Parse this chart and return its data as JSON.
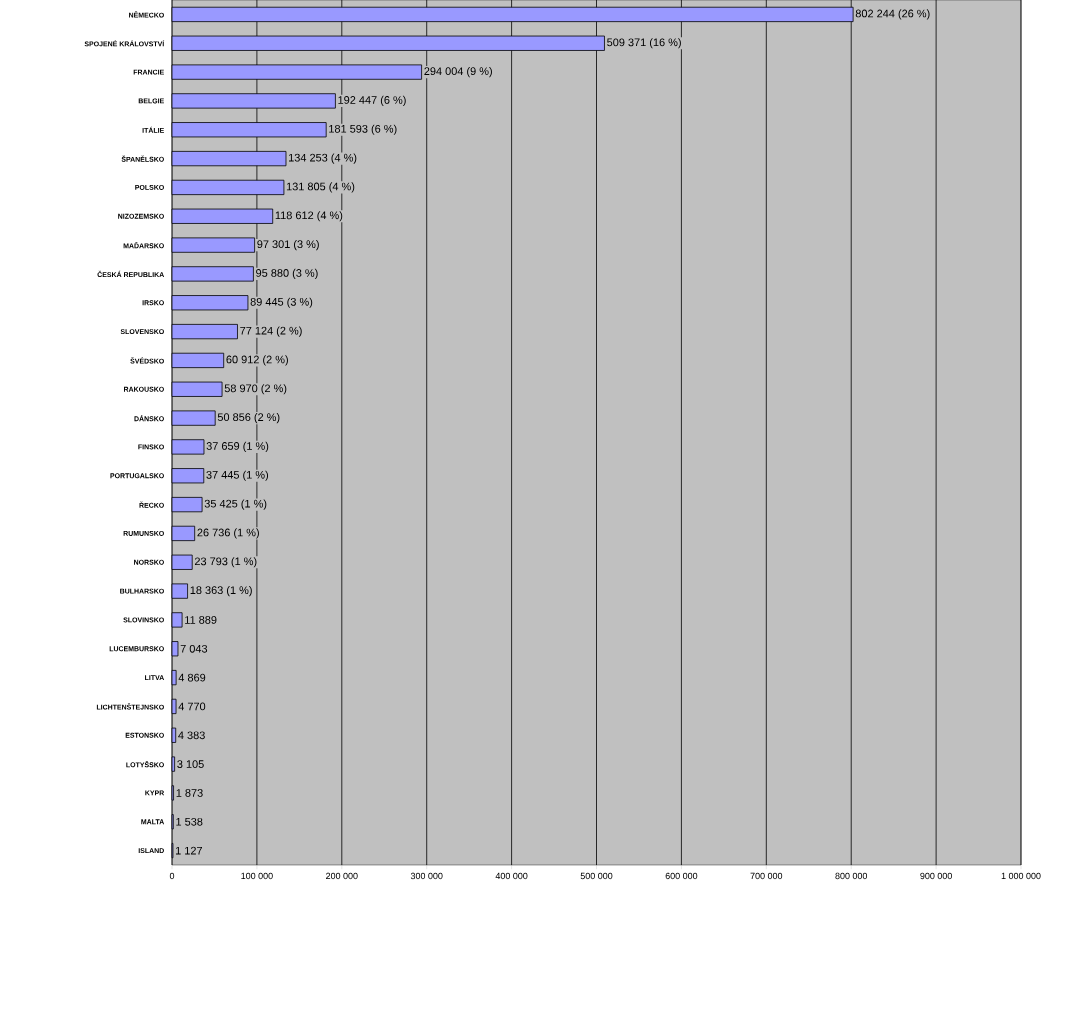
{
  "chart_data": {
    "type": "bar",
    "orientation": "horizontal",
    "color": "#9999ff",
    "grid": "x",
    "categories": [
      "NĚMECKO",
      "SPOJENÉ KRÁLOVSTVÍ",
      "FRANCIE",
      "BELGIE",
      "ITÁLIE",
      "ŠPANĚLSKO",
      "POLSKO",
      "NIZOZEMSKO",
      "MAĎARSKO",
      "ČESKÁ REPUBLIKA",
      "IRSKO",
      "SLOVENSKO",
      "ŠVÉDSKO",
      "RAKOUSKO",
      "DÁNSKO",
      "FINSKO",
      "PORTUGALSKO",
      "ŘECKO",
      "RUMUNSKO",
      "NORSKO",
      "BULHARSKO",
      "SLOVINSKO",
      "LUCEMBURSKO",
      "LITVA",
      "LICHTENŠTEJNSKO",
      "ESTONSKO",
      "LOTYŠSKO",
      "KYPR",
      "MALTA",
      "ISLAND"
    ],
    "values": [
      802244,
      509371,
      294004,
      192447,
      181593,
      134253,
      131805,
      118612,
      97301,
      95880,
      89445,
      77124,
      60912,
      58970,
      50856,
      37659,
      37445,
      35425,
      26736,
      23793,
      18363,
      11889,
      7043,
      4869,
      4770,
      4383,
      3105,
      1873,
      1538,
      1127
    ],
    "value_labels": [
      "802 244 (26 %)",
      "509 371 (16 %)",
      "294 004 (9 %)",
      "192 447 (6 %)",
      "181 593 (6 %)",
      "134 253 (4 %)",
      "131 805 (4 %)",
      "118 612 (4 %)",
      "97 301 (3 %)",
      "95 880 (3 %)",
      "89 445 (3 %)",
      "77 124 (2 %)",
      "60 912 (2 %)",
      "58 970 (2 %)",
      "50 856 (2 %)",
      "37 659 (1 %)",
      "37 445 (1 %)",
      "35 425 (1 %)",
      "26 736 (1 %)",
      "23 793 (1 %)",
      "18 363 (1 %)",
      "11 889",
      "7 043",
      "4 869",
      "4 770",
      "4 383",
      "3 105",
      "1 873",
      "1 538",
      "1 127"
    ],
    "xlim": [
      0,
      1000000
    ],
    "xticks": [
      0,
      {
        "value": 100000,
        "label": "100 000"
      },
      {
        "value": 200000,
        "label": "200 000"
      },
      {
        "value": 300000,
        "label": "300 000"
      },
      {
        "value": 400000,
        "label": "400 000"
      },
      {
        "value": 500000,
        "label": "500 000"
      },
      {
        "value": 600000,
        "label": "600 000"
      },
      {
        "value": 700000,
        "label": "700 000"
      },
      {
        "value": 800000,
        "label": "800 000"
      },
      {
        "value": 900000,
        "label": "900 000"
      },
      {
        "value": 1000000,
        "label": "1 000 000"
      }
    ]
  }
}
